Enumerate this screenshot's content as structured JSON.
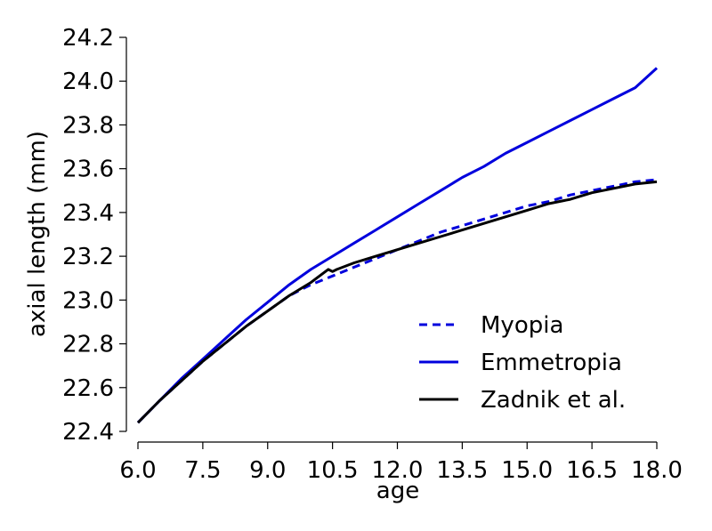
{
  "chart_data": {
    "type": "line",
    "title": "",
    "xlabel": "age",
    "ylabel": "axial length (mm)",
    "xlim": [
      6.0,
      18.0
    ],
    "ylim": [
      22.4,
      24.2
    ],
    "xticks": [
      "6.0",
      "7.5",
      "9.0",
      "10.5",
      "12.0",
      "13.5",
      "15.0",
      "16.5",
      "18.0"
    ],
    "yticks": [
      "22.4",
      "22.6",
      "22.8",
      "23.0",
      "23.2",
      "23.4",
      "23.6",
      "23.8",
      "24.0",
      "24.2"
    ],
    "grid": false,
    "legend_position": "lower-right",
    "series": [
      {
        "name": "Myopia",
        "color": "#0000dd",
        "style": "dashed",
        "x": [
          6.0,
          6.5,
          7.0,
          7.5,
          8.0,
          8.5,
          9.0,
          9.5,
          10.0,
          10.5,
          11.0,
          11.5,
          12.0,
          12.5,
          13.0,
          13.5,
          14.0,
          14.5,
          15.0,
          15.5,
          16.0,
          16.5,
          17.0,
          17.5,
          18.0
        ],
        "y": [
          22.44,
          22.54,
          22.63,
          22.72,
          22.8,
          22.88,
          22.95,
          23.02,
          23.07,
          23.11,
          23.15,
          23.19,
          23.23,
          23.27,
          23.31,
          23.34,
          23.37,
          23.4,
          23.43,
          23.45,
          23.48,
          23.5,
          23.52,
          23.54,
          23.55
        ]
      },
      {
        "name": "Emmetropia",
        "color": "#0000dd",
        "style": "solid",
        "x": [
          6.0,
          6.5,
          7.0,
          7.5,
          8.0,
          8.5,
          9.0,
          9.5,
          10.0,
          10.5,
          11.0,
          11.5,
          12.0,
          12.5,
          13.0,
          13.5,
          14.0,
          14.5,
          15.0,
          15.5,
          16.0,
          16.5,
          17.0,
          17.5,
          18.0
        ],
        "y": [
          22.44,
          22.54,
          22.64,
          22.73,
          22.82,
          22.91,
          22.99,
          23.07,
          23.14,
          23.2,
          23.26,
          23.32,
          23.38,
          23.44,
          23.5,
          23.56,
          23.61,
          23.67,
          23.72,
          23.77,
          23.82,
          23.87,
          23.92,
          23.97,
          24.06
        ]
      },
      {
        "name": "Zadnik et al.",
        "color": "#000000",
        "style": "solid",
        "x": [
          6.0,
          6.5,
          7.0,
          7.5,
          8.0,
          8.5,
          9.0,
          9.5,
          10.0,
          10.4,
          10.5,
          10.6,
          11.0,
          11.5,
          12.0,
          12.5,
          13.0,
          13.5,
          14.0,
          14.5,
          15.0,
          15.5,
          16.0,
          16.5,
          17.0,
          17.5,
          18.0
        ],
        "y": [
          22.44,
          22.54,
          22.63,
          22.72,
          22.8,
          22.88,
          22.95,
          23.02,
          23.08,
          23.14,
          23.13,
          23.14,
          23.17,
          23.2,
          23.23,
          23.26,
          23.29,
          23.32,
          23.35,
          23.38,
          23.41,
          23.44,
          23.46,
          23.49,
          23.51,
          23.53,
          23.54
        ]
      }
    ]
  }
}
